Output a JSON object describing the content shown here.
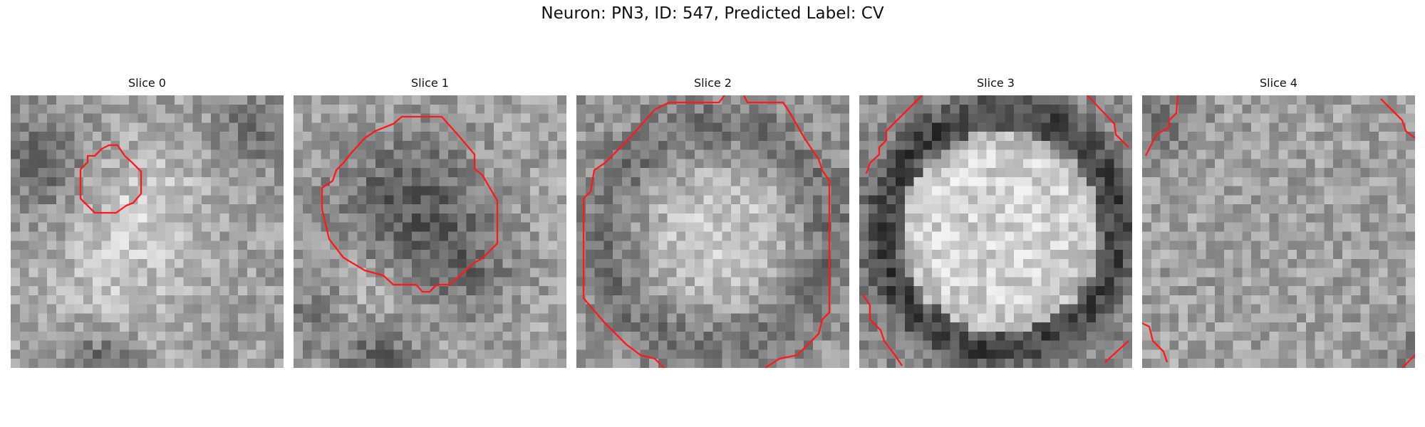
{
  "figure": {
    "title": "Neuron: PN3, ID: 547, Predicted Label: CV",
    "contour_color": "#ff0000",
    "colormap": "grayscale",
    "panels": [
      {
        "label": "Slice 0",
        "pattern": "bright-blob-with-dark-corners"
      },
      {
        "label": "Slice 1",
        "pattern": "dark-center-mass"
      },
      {
        "label": "Slice 2",
        "pattern": "bright-center-dark-ring"
      },
      {
        "label": "Slice 3",
        "pattern": "bright-disc-dark-ring"
      },
      {
        "label": "Slice 4",
        "pattern": "uniform-noise"
      }
    ]
  }
}
